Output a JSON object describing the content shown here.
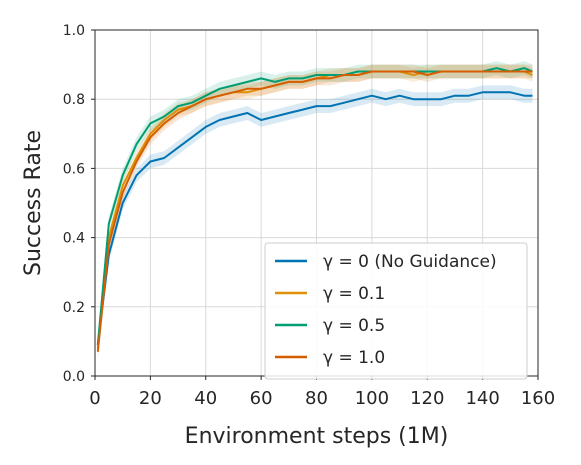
{
  "chart_data": {
    "type": "line",
    "xlabel": "Environment steps (1M)",
    "ylabel": "Success Rate",
    "xlim": [
      0,
      160
    ],
    "ylim": [
      0,
      1.0
    ],
    "grid": true,
    "legend_placement": "lower-right",
    "x_ticks": [
      "0",
      "20",
      "40",
      "60",
      "80",
      "100",
      "120",
      "140",
      "160"
    ],
    "y_ticks": [
      "0.0",
      "0.2",
      "0.4",
      "0.6",
      "0.8",
      "1.0"
    ],
    "x": [
      1,
      5,
      10,
      15,
      20,
      25,
      30,
      35,
      40,
      45,
      50,
      55,
      60,
      65,
      70,
      75,
      80,
      85,
      90,
      95,
      100,
      105,
      110,
      115,
      120,
      125,
      130,
      135,
      140,
      145,
      150,
      155,
      158
    ],
    "series": [
      {
        "name": "γ = 0 (No Guidance)",
        "color": "#0173b2",
        "values": [
          0.09,
          0.35,
          0.5,
          0.58,
          0.62,
          0.63,
          0.66,
          0.69,
          0.72,
          0.74,
          0.75,
          0.76,
          0.74,
          0.75,
          0.76,
          0.77,
          0.78,
          0.78,
          0.79,
          0.8,
          0.81,
          0.8,
          0.81,
          0.8,
          0.8,
          0.8,
          0.81,
          0.81,
          0.82,
          0.82,
          0.82,
          0.81,
          0.81
        ]
      },
      {
        "name": "γ = 0.1",
        "color": "#de8f05",
        "values": [
          0.08,
          0.4,
          0.55,
          0.63,
          0.7,
          0.74,
          0.77,
          0.78,
          0.8,
          0.81,
          0.82,
          0.82,
          0.83,
          0.84,
          0.85,
          0.85,
          0.86,
          0.87,
          0.87,
          0.87,
          0.88,
          0.88,
          0.88,
          0.87,
          0.88,
          0.88,
          0.88,
          0.88,
          0.88,
          0.88,
          0.88,
          0.88,
          0.87
        ]
      },
      {
        "name": "γ = 0.5",
        "color": "#029e73",
        "values": [
          0.09,
          0.44,
          0.58,
          0.67,
          0.73,
          0.75,
          0.78,
          0.79,
          0.81,
          0.83,
          0.84,
          0.85,
          0.86,
          0.85,
          0.86,
          0.86,
          0.87,
          0.87,
          0.87,
          0.88,
          0.88,
          0.88,
          0.88,
          0.88,
          0.88,
          0.88,
          0.88,
          0.88,
          0.88,
          0.89,
          0.88,
          0.89,
          0.88
        ]
      },
      {
        "name": "γ = 1.0",
        "color": "#d55e00",
        "values": [
          0.07,
          0.38,
          0.53,
          0.62,
          0.69,
          0.73,
          0.76,
          0.78,
          0.8,
          0.81,
          0.82,
          0.83,
          0.83,
          0.84,
          0.85,
          0.85,
          0.86,
          0.86,
          0.87,
          0.87,
          0.88,
          0.88,
          0.88,
          0.88,
          0.87,
          0.88,
          0.88,
          0.88,
          0.88,
          0.88,
          0.88,
          0.88,
          0.88
        ]
      }
    ]
  }
}
